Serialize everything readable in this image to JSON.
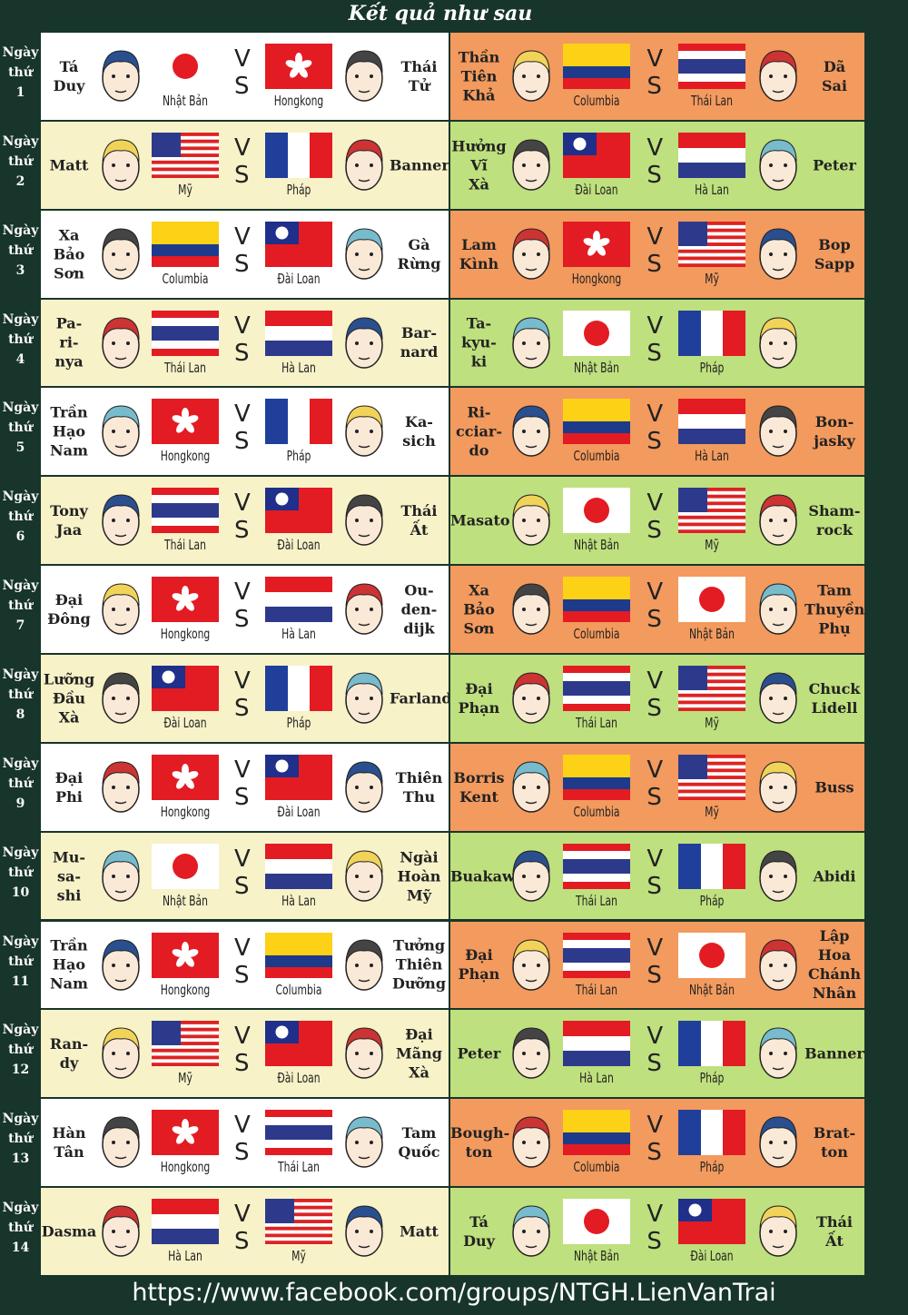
{
  "title": "Kết quả như sau",
  "vs": "VS",
  "footer": "https://www.facebook.com/groups/NTGH.LienVanTrai",
  "days": [
    {
      "label": "Ngày\nthứ\n1",
      "matches": [
        {
          "player1": "Tá\nDuy",
          "country1": "Nhật Bản",
          "country2": "Hongkong",
          "player2": "Thái\nTử"
        },
        {
          "player1": "Thần\nTiên\nKhả",
          "country1": "Columbia",
          "country2": "Thái Lan",
          "player2": "Dã\nSai"
        }
      ]
    },
    {
      "label": "Ngày\nthứ\n2",
      "matches": [
        {
          "player1": "Matt",
          "country1": "Mỹ",
          "country2": "Pháp",
          "player2": "Banner"
        },
        {
          "player1": "Hưởng\nVĩ\nXà",
          "country1": "Đài Loan",
          "country2": "Hà Lan",
          "player2": "Peter"
        }
      ]
    },
    {
      "label": "Ngày\nthứ\n3",
      "matches": [
        {
          "player1": "Xa\nBảo\nSơn",
          "country1": "Columbia",
          "country2": "Đài Loan",
          "player2": "Gà\nRừng"
        },
        {
          "player1": "Lam\nKình",
          "country1": "Hongkong",
          "country2": "Mỹ",
          "player2": "Bop\nSapp"
        }
      ]
    },
    {
      "label": "Ngày\nthứ\n4",
      "matches": [
        {
          "player1": "Pa-\nri-\nnya",
          "country1": "Thái Lan",
          "country2": "Hà Lan",
          "player2": "Bar-\nnard"
        },
        {
          "player1": "Ta-\nkyu-\nki",
          "country1": "Nhật Bản",
          "country2": "Pháp"
        }
      ]
    },
    {
      "label": "Ngày\nthứ\n5",
      "matches": [
        {
          "player1": "Trần\nHạo\nNam",
          "country1": "Hongkong",
          "country2": "Pháp",
          "player2": "Ka-\nsich"
        },
        {
          "player1": "Ri-\ncciar-\ndo",
          "country1": "Columbia",
          "country2": "Hà Lan",
          "player2": "Bon-\njasky"
        }
      ]
    },
    {
      "label": "Ngày\nthứ\n6",
      "matches": [
        {
          "player1": "Tony\nJaa",
          "country1": "Thái Lan",
          "country2": "Đài Loan",
          "player2": "Thái\nẤt"
        },
        {
          "player1": "Masato",
          "country1": "Nhật Bản",
          "country2": "Mỹ",
          "player2": "Sham-\nrock"
        }
      ]
    },
    {
      "label": "Ngày\nthứ\n7",
      "matches": [
        {
          "player1": "Đại\nĐông",
          "country1": "Hongkong",
          "country2": "Hà Lan",
          "player2": "Ou-\nden-\ndijk"
        },
        {
          "player1": "Xa\nBảo\nSơn",
          "country1": "Columbia",
          "country2": "Nhật Bản",
          "player2": "Tam\nThuyền\nPhụ"
        }
      ]
    },
    {
      "label": "Ngày\nthứ\n8",
      "matches": [
        {
          "player1": "Lưỡng\nĐầu\nXà",
          "country1": "Đài Loan",
          "country2": "Pháp",
          "player2": "Farland"
        },
        {
          "player1": "Đại\nPhạn",
          "country1": "Thái Lan",
          "country2": "Mỹ",
          "player2": "Chuck\nLidell"
        }
      ]
    },
    {
      "label": "Ngày\nthứ\n9",
      "matches": [
        {
          "player1": "Đại\nPhi",
          "country1": "Hongkong",
          "country2": "Đài Loan",
          "player2": "Thiên\nThu"
        },
        {
          "player1": "Borris\nKent",
          "country1": "Columbia",
          "country2": "Mỹ",
          "player2": "Buss"
        }
      ]
    },
    {
      "label": "Ngày\nthứ\n10",
      "matches": [
        {
          "player1": "Mu-\nsa-\nshi",
          "country1": "Nhật Bản",
          "country2": "Hà Lan",
          "player2": "Ngài\nHoàn\nMỹ"
        },
        {
          "player1": "Buakaw",
          "country1": "Thái Lan",
          "country2": "Pháp",
          "player2": "Abidi"
        }
      ]
    },
    {
      "label": "Ngày\nthứ\n11",
      "matches": [
        {
          "player1": "Trần\nHạo\nNam",
          "country1": "Hongkong",
          "country2": "Columbia",
          "player2": "Tưởng\nThiên\nDưỡng"
        },
        {
          "player1": "Đại\nPhạn",
          "country1": "Thái Lan",
          "country2": "Nhật Bản",
          "player2": "Lập\nHoa\nChánh\nNhân"
        }
      ]
    },
    {
      "label": "Ngày\nthứ\n12",
      "matches": [
        {
          "player1": "Ran-\ndy",
          "country1": "Mỹ",
          "country2": "Đài Loan",
          "player2": "Đại\nMãng\nXà"
        },
        {
          "player1": "Peter",
          "country1": "Hà Lan",
          "country2": "Pháp",
          "player2": "Banner"
        }
      ]
    },
    {
      "label": "Ngày\nthứ\n13",
      "matches": [
        {
          "player1": "Hàn\nTân",
          "country1": "Hongkong",
          "country2": "Thái Lan",
          "player2": "Tam\nQuốc"
        },
        {
          "player1": "Bough-\nton",
          "country1": "Columbia",
          "country2": "Pháp",
          "player2": "Brat-\nton"
        }
      ]
    },
    {
      "label": "Ngày\nthứ\n14",
      "matches": [
        {
          "player1": "Dasma",
          "country1": "Hà Lan",
          "country2": "Mỹ",
          "player2": "Matt"
        },
        {
          "player1": "Tá\nDuy",
          "country1": "Nhật Bản",
          "country2": "Đài Loan",
          "player2": "Thái\nẤt"
        }
      ]
    }
  ]
}
